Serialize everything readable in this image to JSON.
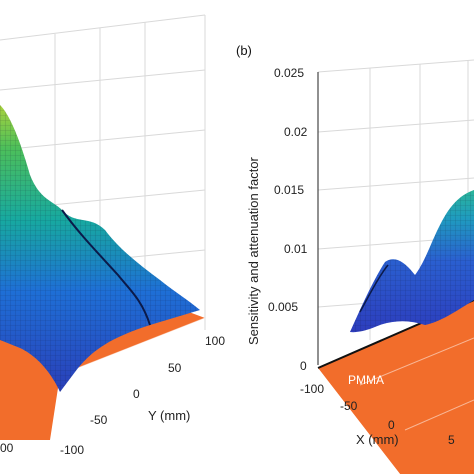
{
  "chart_data": [
    {
      "panel_label": "",
      "type": "surface3d",
      "ylabel": "Y (mm)",
      "y_ticks": [
        "-100",
        "-50",
        "0",
        "50",
        "100"
      ],
      "colormap": "parula",
      "base_plane_color": "#f26d2b",
      "grid": true
    },
    {
      "panel_label": "(b)",
      "type": "surface3d",
      "zlabel": "Sensitivity and attenuation factor",
      "xlabel": "X (mm)",
      "z_ticks": [
        "0",
        "0.005",
        "0.01",
        "0.015",
        "0.02",
        "0.025"
      ],
      "x_ticks": [
        "-100",
        "-50",
        "0"
      ],
      "zlim": [
        0,
        0.025
      ],
      "annotation": "PMMA",
      "colormap": "parula",
      "base_plane_color": "#f26d2b",
      "grid": true
    }
  ]
}
